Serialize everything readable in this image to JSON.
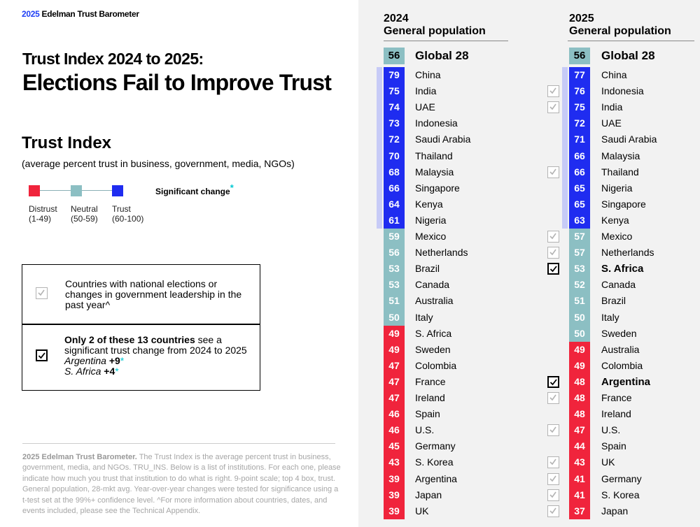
{
  "brand": {
    "year": "2025",
    "name": "Edelman Trust Barometer"
  },
  "title": {
    "line1": "Trust Index 2024 to 2025:",
    "line2": "Elections Fail to Improve Trust"
  },
  "trust_index": {
    "title": "Trust Index",
    "subtitle": "(average percent trust in business, government, media, NGOs)"
  },
  "legend": {
    "items": [
      {
        "label": "Distrust",
        "range": "(1-49)",
        "color": "#f0243c"
      },
      {
        "label": "Neutral",
        "range": "(50-59)",
        "color": "#8cbfc3"
      },
      {
        "label": "Trust",
        "range": "(60-100)",
        "color": "#1f2cf0"
      }
    ],
    "significant_change": "Significant change",
    "asterisk": "*"
  },
  "info_box": {
    "text1": "Countries with national elections or changes in government leadership in the past year^",
    "bold_lead": "Only 2 of these 13 countries",
    "text2_rest": " see a significant trust change from 2024 to 2025",
    "changes": [
      {
        "country": "Argentina",
        "value": "+9"
      },
      {
        "country": "S. Africa",
        "value": "+4"
      }
    ]
  },
  "footnote": {
    "lead": "2025 Edelman Trust Barometer.",
    "text": " The Trust Index is the average percent trust in business, government, media, and NGOs. TRU_INS. Below is a list of institutions. For each one, please indicate how much you trust that institution to do what is right. 9-point scale; top 4 box, trust. General population, 28-mkt avg. Year-over-year changes were tested for significance using a t-test set at the 99%+ confidence level. ^For more information about countries, dates, and events included, please see the Technical Appendix."
  },
  "colors": {
    "distrust": "#f0243c",
    "neutral": "#8cbfc3",
    "trust": "#1f2cf0",
    "trust_band": "#c7cbf7"
  },
  "chart_data": [
    {
      "type": "table",
      "title": "2024\nGeneral population",
      "year": "2024",
      "subtitle": "General population",
      "global": {
        "name": "Global 28",
        "value": 56
      },
      "rows": [
        {
          "country": "China",
          "value": 79
        },
        {
          "country": "India",
          "value": 75
        },
        {
          "country": "UAE",
          "value": 74
        },
        {
          "country": "Indonesia",
          "value": 73
        },
        {
          "country": "Saudi Arabia",
          "value": 72
        },
        {
          "country": "Thailand",
          "value": 70
        },
        {
          "country": "Malaysia",
          "value": 68
        },
        {
          "country": "Singapore",
          "value": 66
        },
        {
          "country": "Kenya",
          "value": 64
        },
        {
          "country": "Nigeria",
          "value": 61
        },
        {
          "country": "Mexico",
          "value": 59
        },
        {
          "country": "Netherlands",
          "value": 56
        },
        {
          "country": "Brazil",
          "value": 53
        },
        {
          "country": "Canada",
          "value": 53
        },
        {
          "country": "Australia",
          "value": 51
        },
        {
          "country": "Italy",
          "value": 50
        },
        {
          "country": "S. Africa",
          "value": 49
        },
        {
          "country": "Sweden",
          "value": 49
        },
        {
          "country": "Colombia",
          "value": 47
        },
        {
          "country": "France",
          "value": 47
        },
        {
          "country": "Ireland",
          "value": 47
        },
        {
          "country": "Spain",
          "value": 46
        },
        {
          "country": "U.S.",
          "value": 46
        },
        {
          "country": "Germany",
          "value": 45
        },
        {
          "country": "S. Korea",
          "value": 43
        },
        {
          "country": "Argentina",
          "value": 39
        },
        {
          "country": "Japan",
          "value": 39
        },
        {
          "country": "UK",
          "value": 39
        }
      ]
    },
    {
      "type": "table",
      "year": "2025",
      "subtitle": "General population",
      "global": {
        "name": "Global 28",
        "value": 56
      },
      "rows": [
        {
          "country": "China",
          "value": 77,
          "election": false
        },
        {
          "country": "Indonesia",
          "value": 76,
          "election": true
        },
        {
          "country": "India",
          "value": 75,
          "election": true
        },
        {
          "country": "UAE",
          "value": 72,
          "election": false
        },
        {
          "country": "Saudi Arabia",
          "value": 71,
          "election": false
        },
        {
          "country": "Malaysia",
          "value": 66,
          "election": false
        },
        {
          "country": "Thailand",
          "value": 66,
          "election": true
        },
        {
          "country": "Nigeria",
          "value": 65,
          "election": false
        },
        {
          "country": "Singapore",
          "value": 65,
          "election": false
        },
        {
          "country": "Kenya",
          "value": 63,
          "election": false
        },
        {
          "country": "Mexico",
          "value": 57,
          "election": true
        },
        {
          "country": "Netherlands",
          "value": 57,
          "election": true
        },
        {
          "country": "S. Africa",
          "value": 53,
          "election": true,
          "significant": true
        },
        {
          "country": "Canada",
          "value": 52,
          "election": false
        },
        {
          "country": "Brazil",
          "value": 51,
          "election": false
        },
        {
          "country": "Italy",
          "value": 50,
          "election": false
        },
        {
          "country": "Sweden",
          "value": 50,
          "election": false
        },
        {
          "country": "Australia",
          "value": 49,
          "election": false
        },
        {
          "country": "Colombia",
          "value": 49,
          "election": false
        },
        {
          "country": "Argentina",
          "value": 48,
          "election": true,
          "significant": true
        },
        {
          "country": "France",
          "value": 48,
          "election": true
        },
        {
          "country": "Ireland",
          "value": 48,
          "election": false
        },
        {
          "country": "U.S.",
          "value": 47,
          "election": true
        },
        {
          "country": "Spain",
          "value": 44,
          "election": false
        },
        {
          "country": "UK",
          "value": 43,
          "election": true
        },
        {
          "country": "Germany",
          "value": 41,
          "election": true
        },
        {
          "country": "S. Korea",
          "value": 41,
          "election": true
        },
        {
          "country": "Japan",
          "value": 37,
          "election": true
        }
      ]
    }
  ]
}
